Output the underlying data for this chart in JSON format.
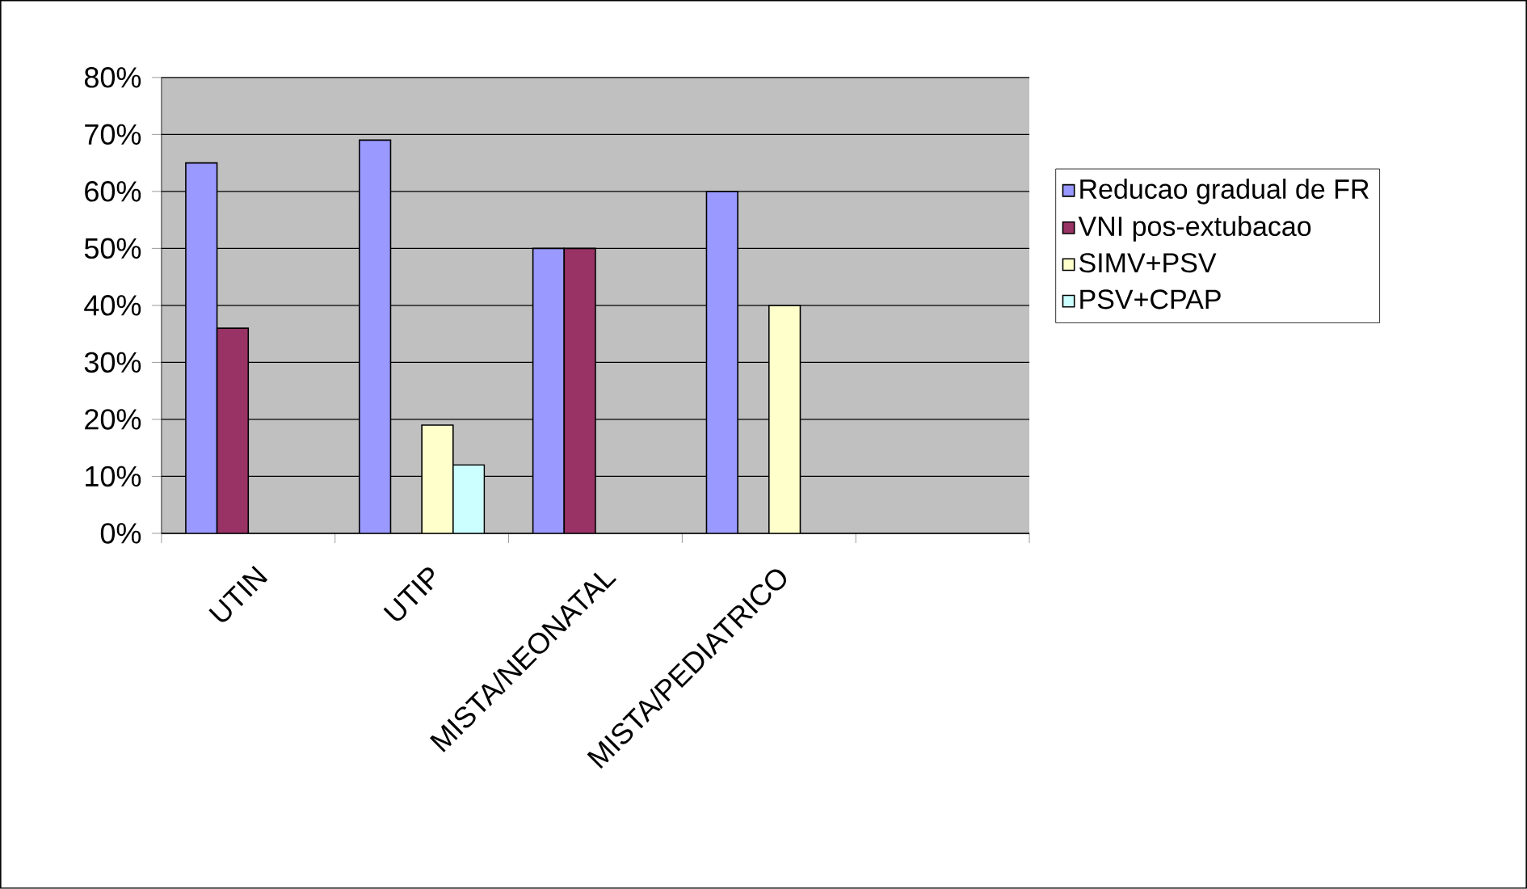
{
  "chart_data": {
    "type": "bar",
    "categories": [
      "UTIN",
      "UTIP",
      "MISTA/NEONATAL",
      "MISTA/PEDIATRICO",
      null
    ],
    "series": [
      {
        "name": "Reducao gradual de FR",
        "color": "#9999ff",
        "values": [
          65,
          69,
          50,
          60,
          null
        ]
      },
      {
        "name": "VNI pos-extubacao",
        "color": "#993366",
        "values": [
          36,
          null,
          50,
          null,
          null
        ]
      },
      {
        "name": "SIMV+PSV",
        "color": "#ffffcc",
        "values": [
          null,
          19,
          null,
          40,
          null
        ]
      },
      {
        "name": "PSV+CPAP",
        "color": "#ccffff",
        "values": [
          null,
          12,
          null,
          null,
          null
        ]
      }
    ],
    "ylim": [
      0,
      80
    ],
    "yticks": [
      {
        "value": 0,
        "label": "0%"
      },
      {
        "value": 10,
        "label": "10%"
      },
      {
        "value": 20,
        "label": "20%"
      },
      {
        "value": 30,
        "label": "30%"
      },
      {
        "value": 40,
        "label": "40%"
      },
      {
        "value": 50,
        "label": "50%"
      },
      {
        "value": 60,
        "label": "60%"
      },
      {
        "value": 70,
        "label": "70%"
      },
      {
        "value": 80,
        "label": "80%"
      }
    ],
    "grid": "y",
    "legend": "right"
  }
}
